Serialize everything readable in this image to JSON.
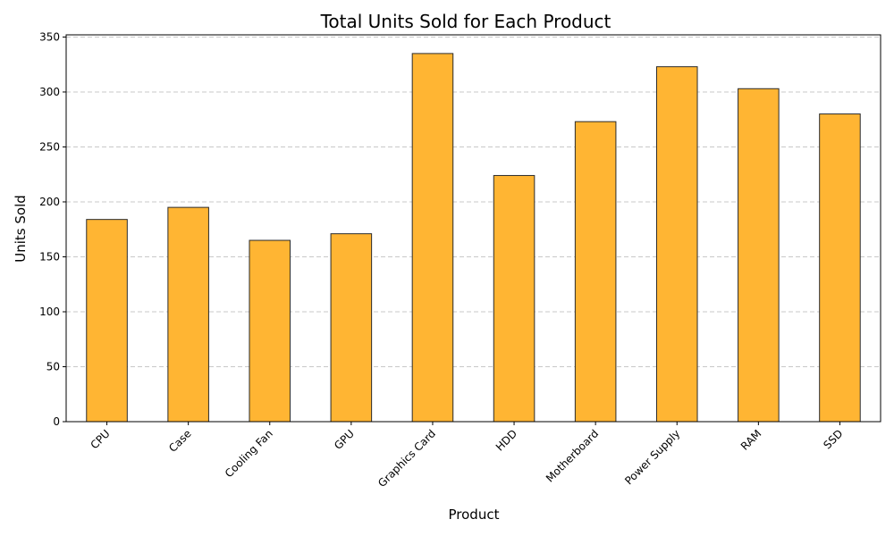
{
  "chart_data": {
    "type": "bar",
    "title": "Total Units Sold for Each Product",
    "xlabel": "Product",
    "ylabel": "Units Sold",
    "categories": [
      "CPU",
      "Case",
      "Cooling Fan",
      "GPU",
      "Graphics Card",
      "HDD",
      "Motherboard",
      "Power Supply",
      "RAM",
      "SSD"
    ],
    "values": [
      184,
      195,
      165,
      171,
      335,
      224,
      273,
      323,
      303,
      280
    ],
    "ylim": [
      0,
      352
    ],
    "yticks": [
      0,
      50,
      100,
      150,
      200,
      250,
      300,
      350
    ],
    "grid": "y-dashed",
    "bar_color": "#FFB533",
    "edge_color": "#2b2b2b",
    "grid_color": "#c8c8c8"
  }
}
